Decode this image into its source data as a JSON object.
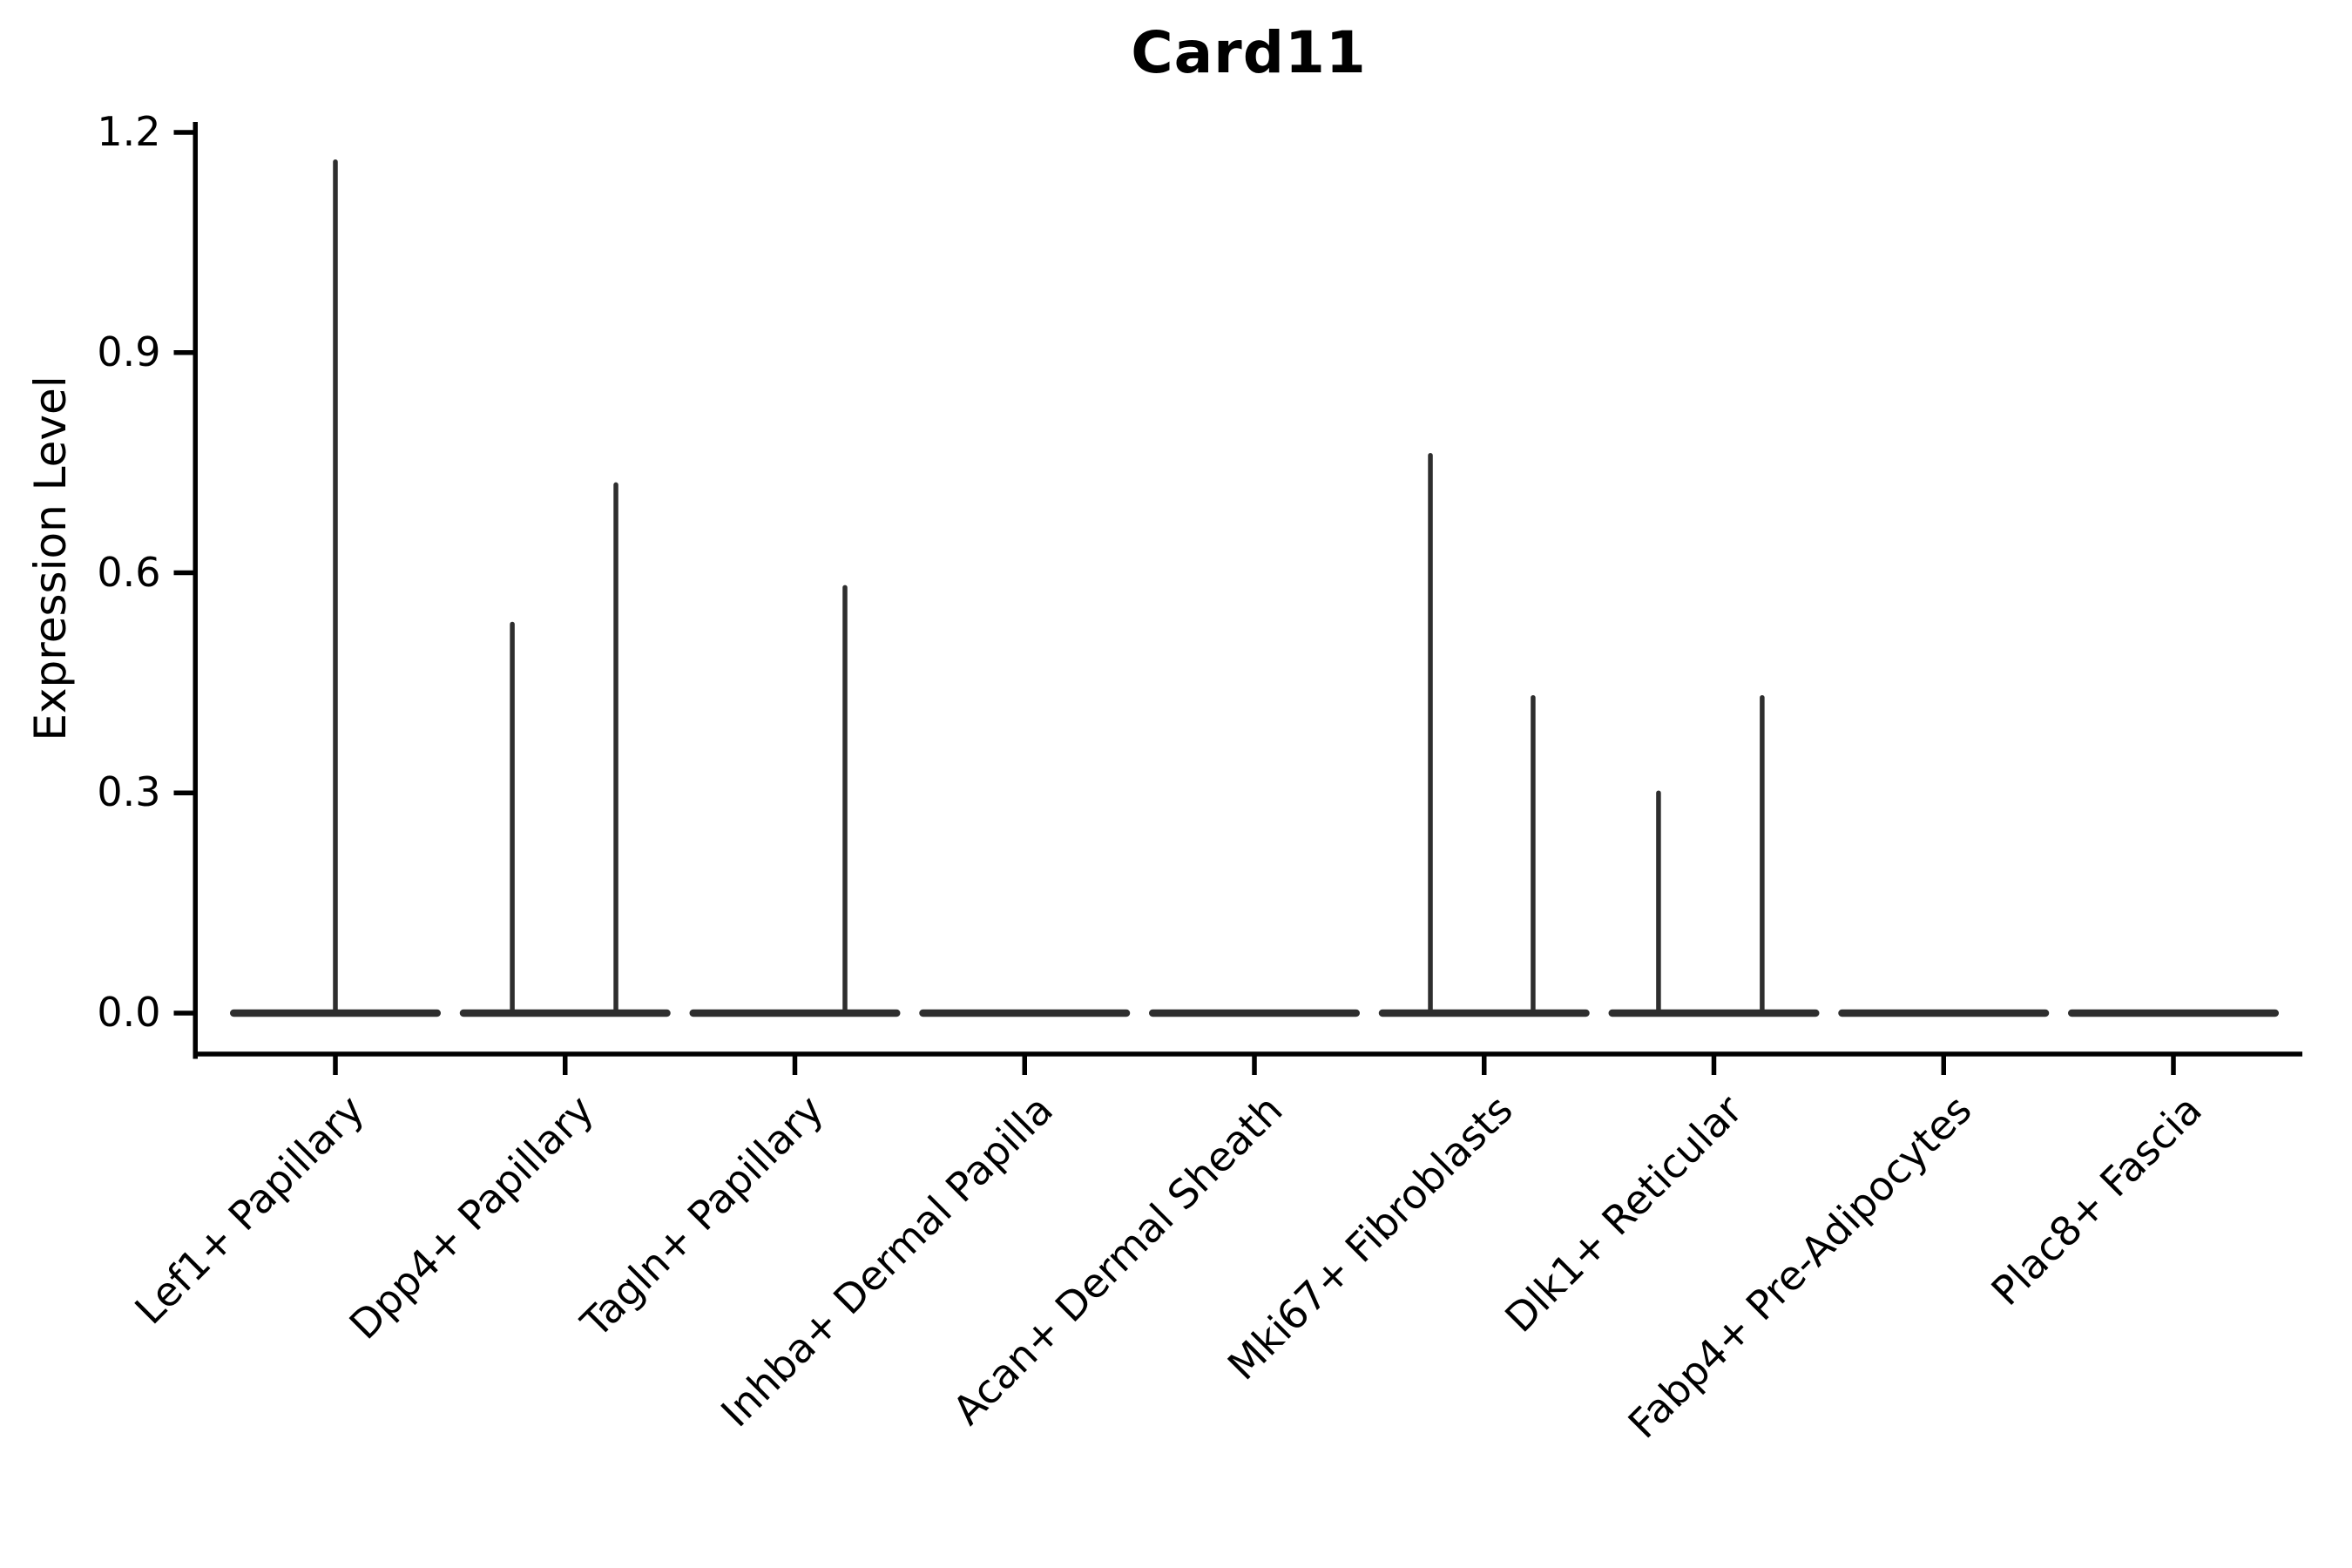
{
  "title": "Card11",
  "chart_data": {
    "type": "violin",
    "title": "Card11",
    "ylabel": "Expression Level",
    "xlabel": "",
    "ylim": [
      0,
      1.2
    ],
    "ytick_values": [
      0,
      0.3,
      0.6,
      0.9,
      1.2
    ],
    "ytick_labels": [
      "0.0",
      "0.3",
      "0.6",
      "0.9",
      "1.2"
    ],
    "categories": [
      "Lef1+ Papillary",
      "Dpp4+ Papillary",
      "Tagln+ Papillary",
      "Inhba+ Dermal Papilla",
      "Acan+ Dermal Sheath",
      "Mki67+ Fibroblasts",
      "Dlk1+ Reticular",
      "Fabp4+ Pre-Adipocytes",
      "Plac8+ Fascia"
    ],
    "violins": [
      {
        "category": "Lef1+ Papillary",
        "baseline_value": 0,
        "spikes": [
          {
            "offset": 0.0,
            "max_value": 1.16
          }
        ]
      },
      {
        "category": "Dpp4+ Papillary",
        "baseline_value": 0,
        "spikes": [
          {
            "offset": -0.23,
            "max_value": 0.53
          },
          {
            "offset": 0.221,
            "max_value": 0.72
          }
        ]
      },
      {
        "category": "Tagln+ Papillary",
        "baseline_value": 0,
        "spikes": [
          {
            "offset": 0.218,
            "max_value": 0.58
          }
        ]
      },
      {
        "category": "Inhba+ Dermal Papilla",
        "baseline_value": 0,
        "spikes": []
      },
      {
        "category": "Acan+ Dermal Sheath",
        "baseline_value": 0,
        "spikes": []
      },
      {
        "category": "Mki67+ Fibroblasts",
        "baseline_value": 0,
        "spikes": [
          {
            "offset": -0.234,
            "max_value": 0.76
          },
          {
            "offset": 0.213,
            "max_value": 0.43
          }
        ]
      },
      {
        "category": "Dlk1+ Reticular",
        "baseline_value": 0,
        "spikes": [
          {
            "offset": -0.241,
            "max_value": 0.3
          },
          {
            "offset": 0.21,
            "max_value": 0.43
          }
        ]
      },
      {
        "category": "Fabp4+ Pre-Adipocytes",
        "baseline_value": 0,
        "spikes": []
      },
      {
        "category": "Plac8+ Fascia",
        "baseline_value": 0,
        "spikes": []
      }
    ],
    "grid": false,
    "legend": "none",
    "colors": {
      "violin": "#2e2e2e",
      "axis": "#000000",
      "text": "#000000",
      "background": "#ffffff"
    }
  }
}
